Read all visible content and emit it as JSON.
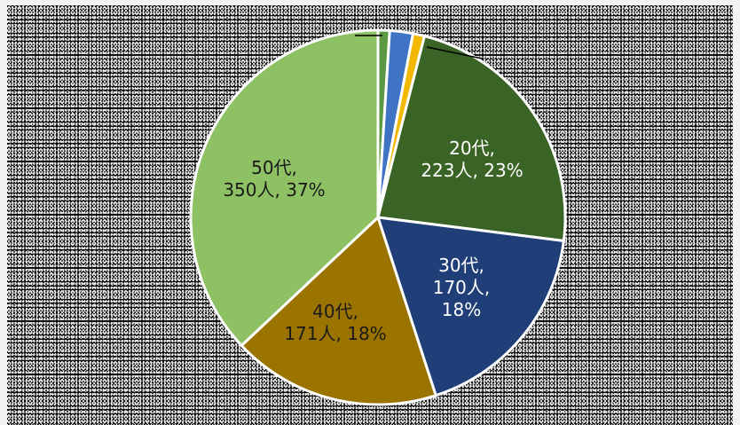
{
  "chart_data": {
    "type": "pie",
    "title": "",
    "slices": [
      {
        "category": "",
        "count": null,
        "percent": 1,
        "color": "#5b9a43",
        "label_lines": []
      },
      {
        "category": "",
        "count": null,
        "percent": 2,
        "color": "#3f73c4",
        "label_lines": []
      },
      {
        "category": "",
        "count": null,
        "percent": 1,
        "color": "#f2b800",
        "label_lines": []
      },
      {
        "category": "20代",
        "count": 223,
        "percent": 23,
        "color": "#3a6425",
        "label_lines": [
          "20代,",
          "223人, 23%"
        ]
      },
      {
        "category": "30代",
        "count": 170,
        "percent": 18,
        "color": "#203f78",
        "label_lines": [
          "30代,",
          "170人,",
          "18%"
        ]
      },
      {
        "category": "40代",
        "count": 171,
        "percent": 18,
        "color": "#9b7400",
        "label_lines": [
          "40代,",
          "171人, 18%"
        ]
      },
      {
        "category": "50代",
        "count": 350,
        "percent": 37,
        "color": "#8dc164",
        "label_lines": [
          "50代,",
          "350人, 37%"
        ]
      }
    ]
  }
}
